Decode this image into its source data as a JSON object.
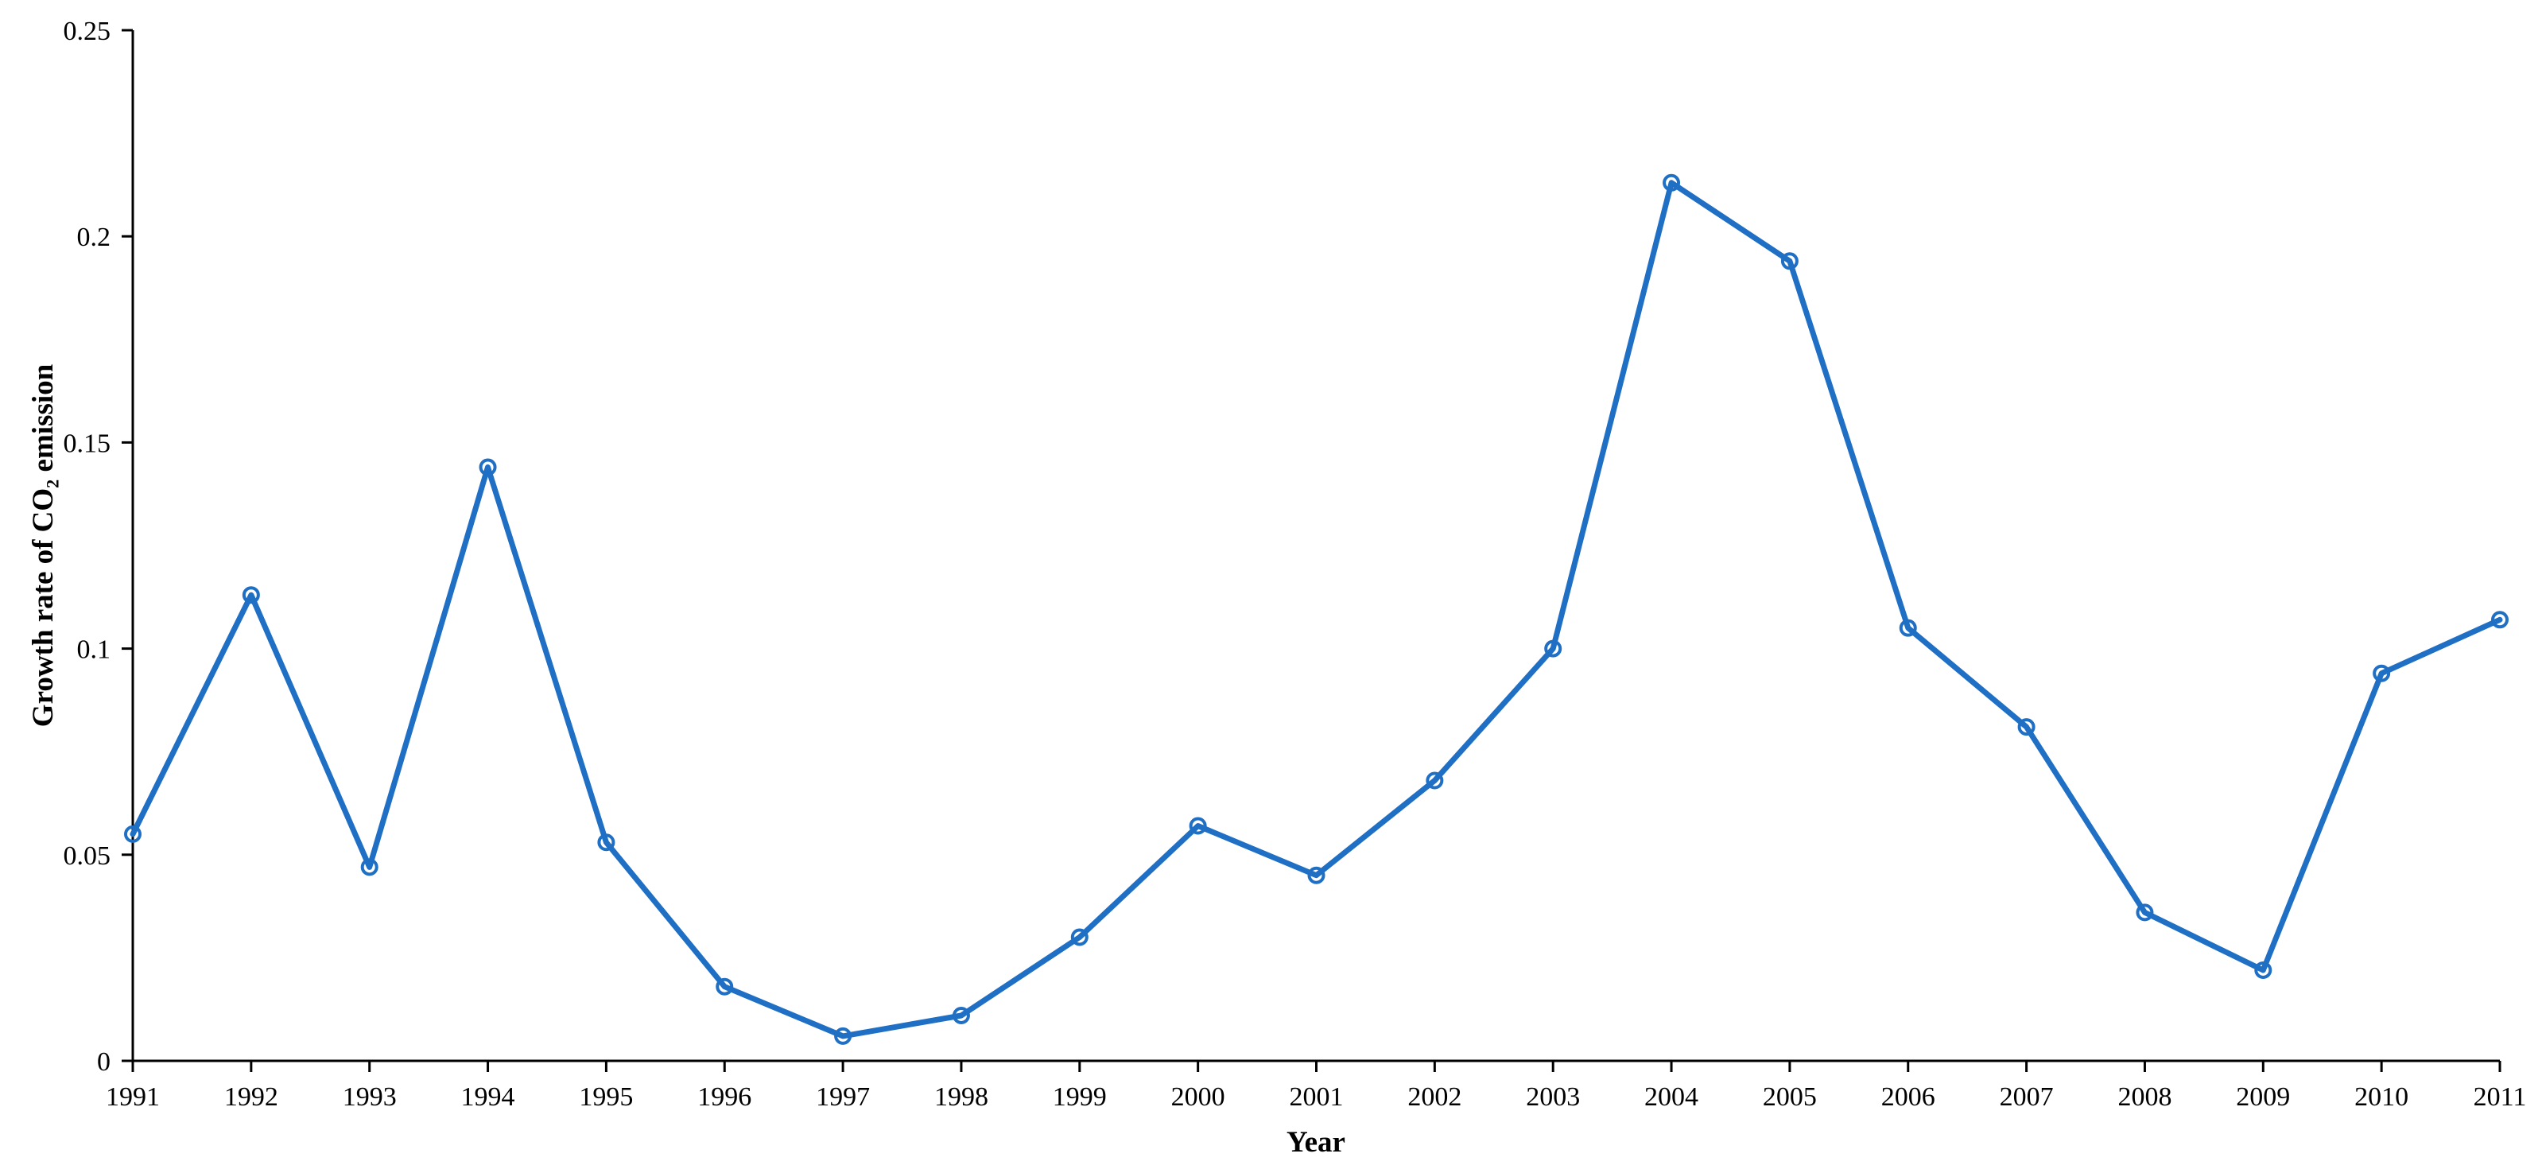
{
  "chart_data": {
    "type": "line",
    "xlabel": "Year",
    "ylabel": "Growth rate of CO₂ emission",
    "ylim": [
      0,
      0.25
    ],
    "y_ticks": [
      "0",
      "0.05",
      "0.1",
      "0.15",
      "0.2",
      "0.25"
    ],
    "y_tick_values": [
      0,
      0.05,
      0.1,
      0.15,
      0.2,
      0.25
    ],
    "categories": [
      "1991",
      "1992",
      "1993",
      "1994",
      "1995",
      "1996",
      "1997",
      "1998",
      "1999",
      "2000",
      "2001",
      "2002",
      "2003",
      "2004",
      "2005",
      "2006",
      "2007",
      "2008",
      "2009",
      "2010",
      "2011"
    ],
    "series": [
      {
        "values": [
          0.055,
          0.113,
          0.047,
          0.144,
          0.053,
          0.018,
          0.006,
          0.011,
          0.03,
          0.057,
          0.045,
          0.068,
          0.1,
          0.213,
          0.194,
          0.105,
          0.081,
          0.036,
          0.022,
          0.094,
          0.107
        ],
        "color": "#1f6fc5",
        "marker": "circle-open"
      }
    ],
    "grid": false,
    "legend": "none"
  }
}
